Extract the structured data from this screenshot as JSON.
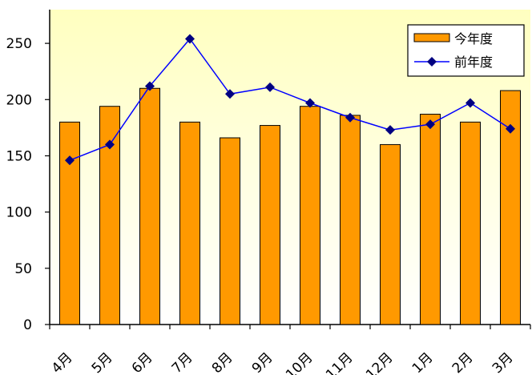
{
  "chart_data": {
    "type": "bar",
    "title": "",
    "xlabel": "",
    "ylabel": "",
    "categories": [
      "4月",
      "5月",
      "6月",
      "7月",
      "8月",
      "9月",
      "10月",
      "11月",
      "12月",
      "1月",
      "2月",
      "3月"
    ],
    "series": [
      {
        "name": "今年度",
        "type": "bar",
        "values": [
          180,
          194,
          210,
          180,
          166,
          177,
          194,
          186,
          160,
          187,
          180,
          208
        ],
        "color": "#FF9900"
      },
      {
        "name": "前年度",
        "type": "line",
        "values": [
          146,
          160,
          212,
          254,
          205,
          211,
          197,
          184,
          173,
          178,
          197,
          174
        ],
        "color": "#000080"
      }
    ],
    "yticks": [
      "0",
      "50",
      "100",
      "150",
      "200",
      "250"
    ],
    "ylim": [
      0,
      280
    ],
    "grid": false,
    "legend": "top-right",
    "background": [
      "#FFFFC0",
      "#FFFFFF"
    ]
  }
}
